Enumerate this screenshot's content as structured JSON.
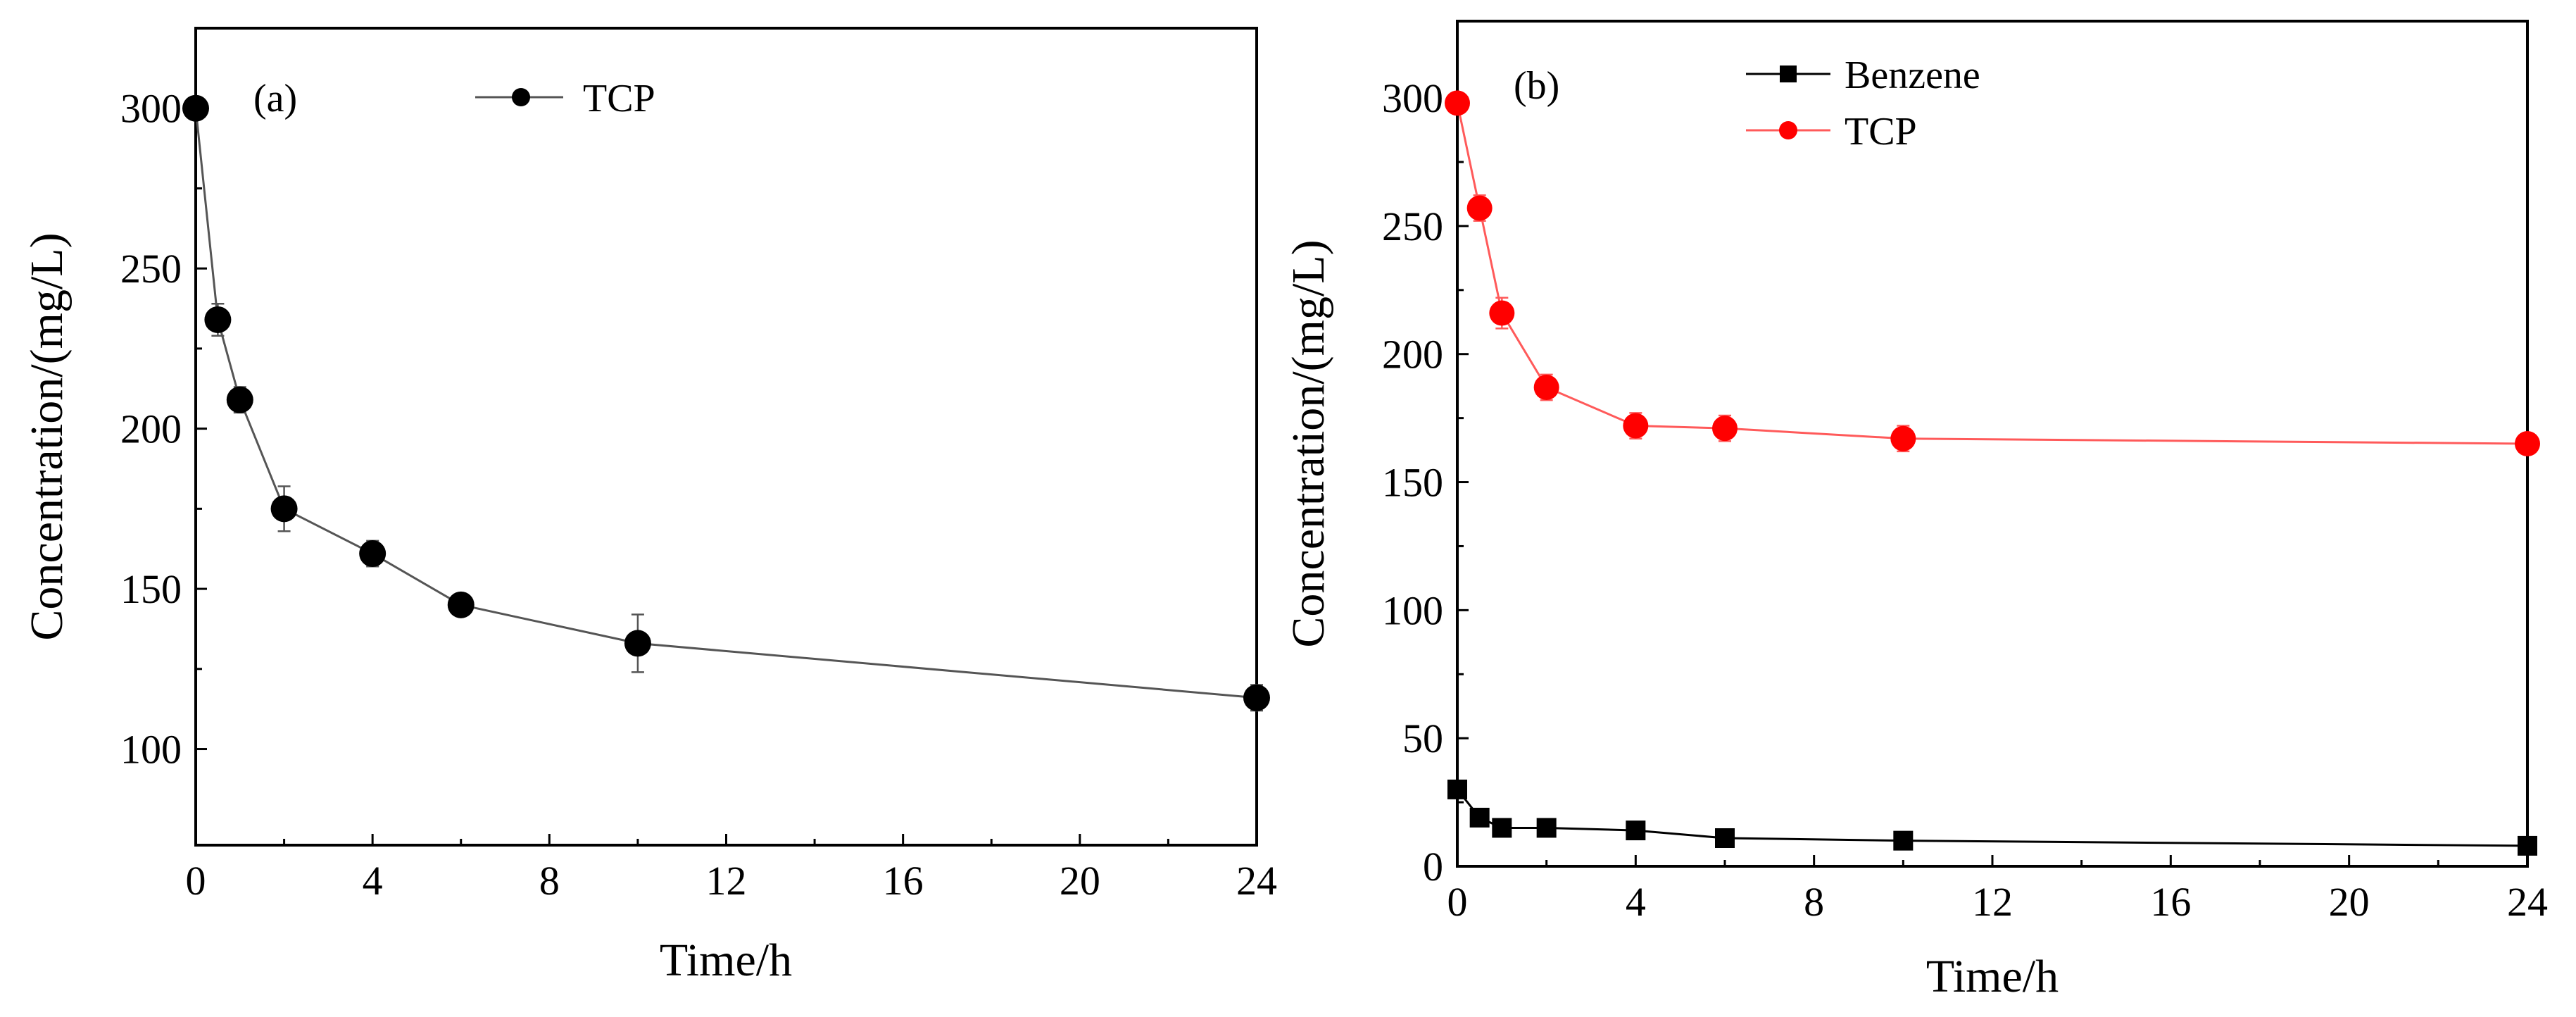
{
  "chart_data": [
    {
      "type": "line",
      "panel_label": "(a)",
      "title": "",
      "xlabel": "Time/h",
      "ylabel": "Concentration/(mg/L)",
      "xlim": [
        0,
        24
      ],
      "ylim": [
        70,
        325
      ],
      "xticks": [
        0,
        4,
        8,
        12,
        16,
        20,
        24
      ],
      "yticks": [
        100,
        150,
        200,
        250,
        300
      ],
      "grid": false,
      "legend_position": "top-center",
      "series": [
        {
          "name": "TCP",
          "marker": "circle",
          "color": "#000000",
          "line_color": "#555555",
          "x": [
            0,
            0.5,
            1,
            2,
            4,
            6,
            10,
            24
          ],
          "y": [
            300,
            234,
            209,
            175,
            161,
            145,
            133,
            116
          ],
          "error": [
            0,
            5,
            4,
            7,
            4,
            3,
            9,
            4
          ]
        }
      ]
    },
    {
      "type": "line",
      "panel_label": "(b)",
      "title": "",
      "xlabel": "Time/h",
      "ylabel": "Concentration/(mg/L)",
      "xlim": [
        0,
        24
      ],
      "ylim": [
        0,
        330
      ],
      "xticks": [
        0,
        4,
        8,
        12,
        16,
        20,
        24
      ],
      "yticks": [
        0,
        50,
        100,
        150,
        200,
        250,
        300
      ],
      "grid": false,
      "legend_position": "top-left",
      "series": [
        {
          "name": "Benzene",
          "marker": "square",
          "color": "#000000",
          "line_color": "#000000",
          "x": [
            0,
            0.5,
            1,
            2,
            4,
            6,
            10,
            24
          ],
          "y": [
            30,
            19,
            15,
            15,
            14,
            11,
            10,
            8
          ],
          "error": [
            0,
            0,
            0,
            0,
            0,
            0,
            0,
            0
          ]
        },
        {
          "name": "TCP",
          "marker": "circle",
          "color": "#ff0000",
          "line_color": "#ff5a5a",
          "x": [
            0,
            0.5,
            1,
            2,
            4,
            6,
            10,
            24
          ],
          "y": [
            298,
            257,
            216,
            187,
            172,
            171,
            167,
            165
          ],
          "error": [
            0,
            5,
            6,
            5,
            5,
            5,
            5,
            3
          ]
        }
      ]
    }
  ]
}
